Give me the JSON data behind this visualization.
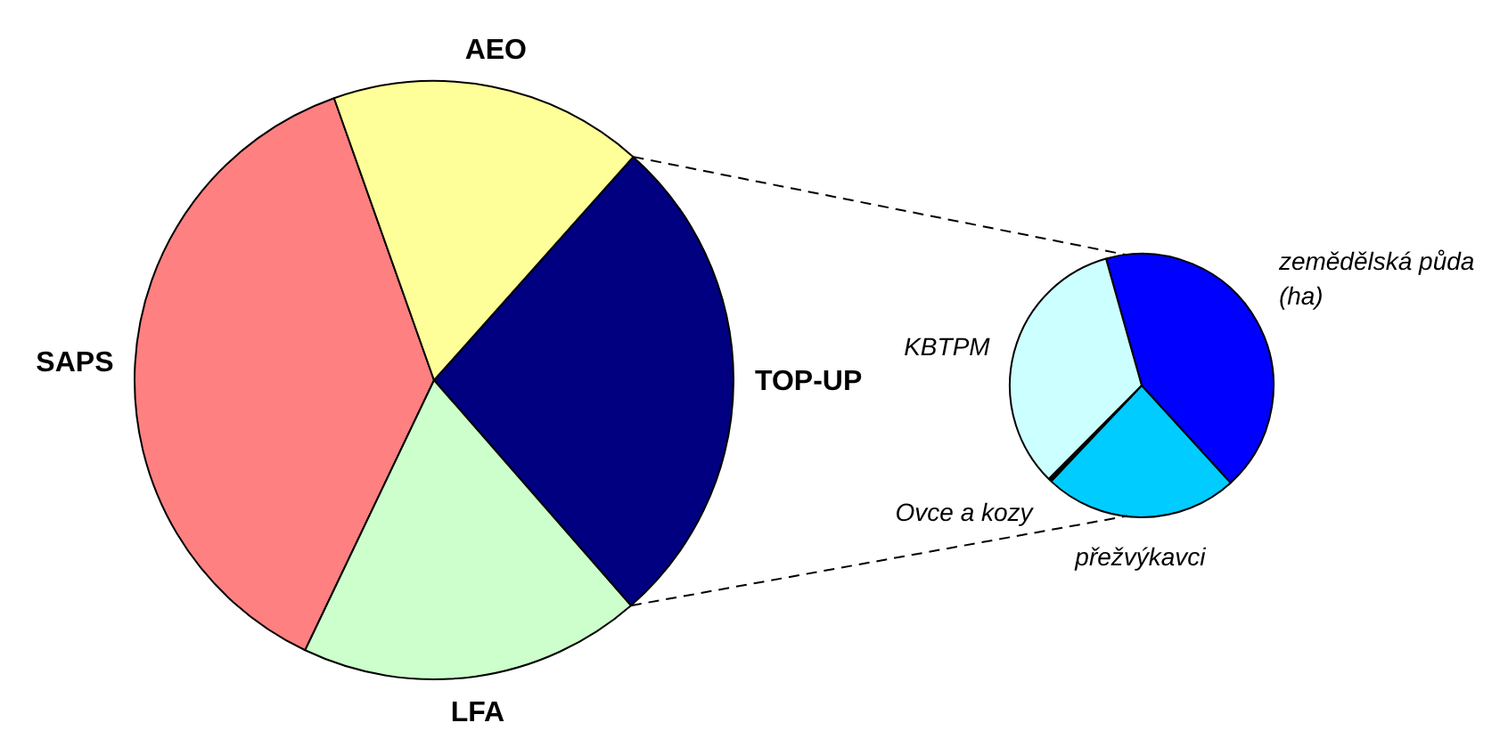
{
  "chart_data": [
    {
      "type": "pie",
      "categories": [
        "AEO",
        "TOP-UP",
        "LFA",
        "SAPS"
      ],
      "values": [
        17,
        27,
        18.5,
        37.5
      ],
      "colors": [
        "#ffff99",
        "#000080",
        "#ccffcc",
        "#ff8080"
      ]
    },
    {
      "type": "pie",
      "categories": [
        "zemědělská půda\n(ha)",
        "přežvýkavci",
        "Ovce a kozy",
        "KBTPM"
      ],
      "values": [
        42.6,
        23.8,
        0.4,
        33.2
      ],
      "colors": [
        "#0000ff",
        "#00ccff",
        "#000000",
        "#ccffff"
      ]
    }
  ]
}
